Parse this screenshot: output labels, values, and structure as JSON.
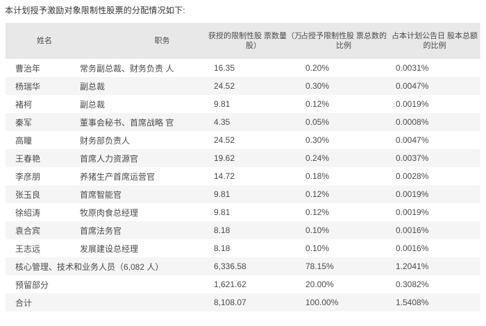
{
  "page": {
    "title": "本计划授予激励对象限制性股票的分配情况如下:"
  },
  "colors": {
    "header_bg": "#e8e8e8",
    "row_stripe_bg": "#f5f5f5",
    "body_text": "#4a4a4a",
    "title_text": "#333333"
  },
  "table": {
    "headers": [
      {
        "line1": "姓名",
        "line2": ""
      },
      {
        "line1": "职务",
        "line2": ""
      },
      {
        "line1": "获授的限制性股 票数量（万",
        "line2": "股）"
      },
      {
        "line1": "占授予限制性股 票总数的",
        "line2": "比例"
      },
      {
        "line1": "占本计划公告日 股本总额",
        "line2": "的比例"
      }
    ],
    "rows": [
      {
        "name": "曹治年",
        "position": "常务副总裁、财务负责 人",
        "shares": "16.35",
        "pct_of_grant": "0.20%",
        "pct_of_capital": "0.0031%"
      },
      {
        "name": "杨瑞华",
        "position": "副总裁",
        "shares": "24.52",
        "pct_of_grant": "0.30%",
        "pct_of_capital": "0.0047%"
      },
      {
        "name": "褚柯",
        "position": "副总裁",
        "shares": "9.81",
        "pct_of_grant": "0.12%",
        "pct_of_capital": "0.0019%"
      },
      {
        "name": "秦军",
        "position": "董事会秘书、首席战略 官",
        "shares": "4.35",
        "pct_of_grant": "0.05%",
        "pct_of_capital": "0.0008%"
      },
      {
        "name": "高瞳",
        "position": "财务部负责人",
        "shares": "24.52",
        "pct_of_grant": "0.30%",
        "pct_of_capital": "0.0047%"
      },
      {
        "name": "王春艳",
        "position": "首席人力资源官",
        "shares": "19.62",
        "pct_of_grant": "0.24%",
        "pct_of_capital": "0.0037%"
      },
      {
        "name": "李彦朋",
        "position": "养猪生产首席运营官",
        "shares": "14.72",
        "pct_of_grant": "0.18%",
        "pct_of_capital": "0.0028%"
      },
      {
        "name": "张玉良",
        "position": "首席智能官",
        "shares": "9.81",
        "pct_of_grant": "0.12%",
        "pct_of_capital": "0.0019%"
      },
      {
        "name": "徐绍涛",
        "position": "牧原肉食总经理",
        "shares": "9.81",
        "pct_of_grant": "0.12%",
        "pct_of_capital": "0.0019%"
      },
      {
        "name": "袁合宾",
        "position": "首席法务官",
        "shares": "8.18",
        "pct_of_grant": "0.10%",
        "pct_of_capital": "0.0016%"
      },
      {
        "name": "王志远",
        "position": "发展建设总经理",
        "shares": "8.18",
        "pct_of_grant": "0.10%",
        "pct_of_capital": "0.0016%"
      },
      {
        "name": "核心管理、技术和业务人员（6,082 人）",
        "position": "",
        "span_name": true,
        "shares": "6,336.58",
        "pct_of_grant": "78.15%",
        "pct_of_capital": "1.2041%"
      },
      {
        "name": "预留部分",
        "position": "",
        "span_name": true,
        "shares": "1,621.62",
        "pct_of_grant": "20.00%",
        "pct_of_capital": "0.3082%"
      },
      {
        "name": "合计",
        "position": "",
        "span_name": true,
        "shares": "8,108.07",
        "pct_of_grant": "100.00%",
        "pct_of_capital": "1.5408%"
      }
    ]
  }
}
